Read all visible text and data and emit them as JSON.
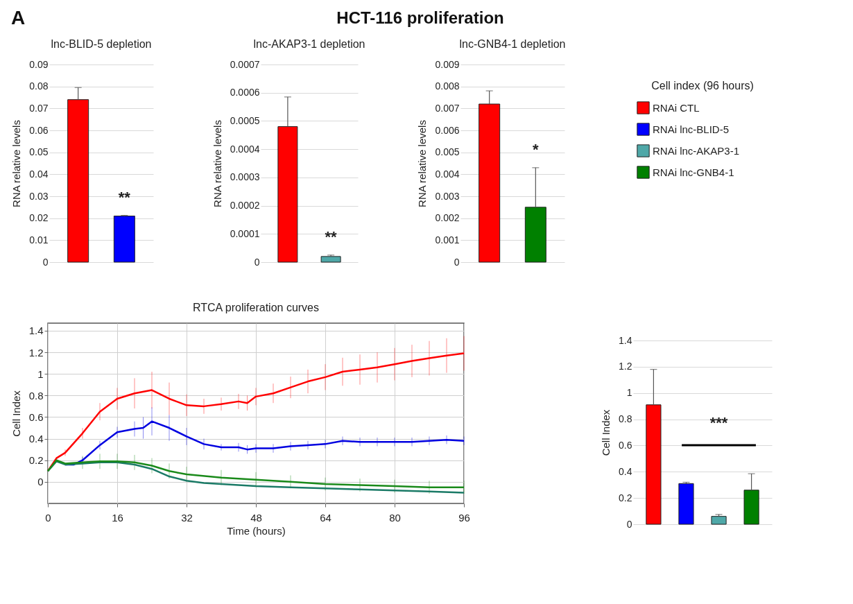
{
  "chart_data": [
    {
      "type": "other",
      "title": "HCT-116 proliferation",
      "annotations": [
        "A"
      ]
    },
    {
      "type": "bar",
      "title": "lnc-BLID-5 depletion",
      "ylabel": "RNA relative levels",
      "categories": [
        null,
        null
      ],
      "values": [
        0.074,
        0.021
      ],
      "colors": [
        "#ff0000",
        "#0000ff"
      ],
      "errors": [
        [
          0.074,
          0.0795
        ],
        [
          0.021,
          0.0213
        ]
      ],
      "ylim": [
        0,
        0.09
      ],
      "yticks": [
        0,
        0.01,
        0.02,
        0.03,
        0.04,
        0.05,
        0.06,
        0.07,
        0.08,
        0.09
      ],
      "grid": "y",
      "annotations": [
        "**"
      ]
    },
    {
      "type": "bar",
      "title": "lnc-AKAP3-1 depletion",
      "ylabel": "RNA relative levels",
      "categories": [
        null,
        null
      ],
      "values": [
        0.00048,
        2e-05
      ],
      "colors": [
        "#ff0000",
        "#4fa8a8"
      ],
      "errors": [
        [
          0.00048,
          0.000585
        ],
        [
          2e-05,
          2.5e-05
        ]
      ],
      "ylim": [
        0,
        0.0007
      ],
      "yticks": [
        0,
        0.0001,
        0.0002,
        0.0003,
        0.0004,
        0.0005,
        0.0006,
        0.0007
      ],
      "grid": "y",
      "annotations": [
        "**"
      ]
    },
    {
      "type": "bar",
      "title": "lnc-GNB4-1 depletion",
      "ylabel": "RNA relative levels",
      "categories": [
        null,
        null
      ],
      "values": [
        0.0072,
        0.0025
      ],
      "colors": [
        "#ff0000",
        "#008000"
      ],
      "errors": [
        [
          0.0072,
          0.0078
        ],
        [
          0.0025,
          0.0043
        ]
      ],
      "ylim": [
        0,
        0.009
      ],
      "yticks": [
        0,
        0.001,
        0.002,
        0.003,
        0.004,
        0.005,
        0.006,
        0.007,
        0.008,
        0.009
      ],
      "grid": "y",
      "annotations": [
        "*"
      ]
    },
    {
      "type": "line",
      "title": "RTCA proliferation curves",
      "xlabel": "Time (hours)",
      "ylabel": "Cell Index",
      "xlim": [
        0,
        96
      ],
      "xticks": [
        0,
        16,
        32,
        48,
        64,
        80,
        96
      ],
      "ylim": [
        -0.2,
        1.47
      ],
      "yticks": [
        0,
        0.2,
        0.4,
        0.6,
        0.8,
        1,
        1.2,
        1.4
      ],
      "grid": true,
      "series": [
        {
          "color": "#ff0000",
          "x": [
            0,
            2,
            4,
            8,
            12,
            16,
            20,
            24,
            28,
            32,
            36,
            40,
            44,
            46,
            48,
            52,
            56,
            60,
            64,
            68,
            72,
            76,
            80,
            84,
            88,
            92,
            96
          ],
          "values": [
            0.1,
            0.22,
            0.27,
            0.45,
            0.65,
            0.77,
            0.82,
            0.85,
            0.77,
            0.71,
            0.7,
            0.72,
            0.745,
            0.73,
            0.79,
            0.82,
            0.875,
            0.93,
            0.97,
            1.02,
            1.04,
            1.06,
            1.09,
            1.12,
            1.145,
            1.17,
            1.19
          ],
          "errors": [
            null,
            null,
            0.03,
            0.05,
            0.08,
            0.1,
            0.14,
            0.17,
            0.15,
            0.1,
            0.07,
            0.06,
            0.07,
            0.07,
            0.08,
            0.09,
            0.1,
            0.11,
            0.12,
            0.13,
            0.14,
            0.14,
            0.15,
            0.15,
            0.16,
            0.16,
            0.16
          ]
        },
        {
          "color": "#0000e0",
          "x": [
            4,
            6,
            8,
            12,
            16,
            20,
            22,
            24,
            28,
            32,
            36,
            40,
            44,
            46,
            48,
            52,
            56,
            60,
            64,
            68,
            72,
            76,
            80,
            84,
            88,
            92,
            96
          ],
          "values": [
            0.16,
            0.16,
            0.2,
            0.34,
            0.46,
            0.49,
            0.5,
            0.56,
            0.5,
            0.42,
            0.35,
            0.32,
            0.32,
            0.3,
            0.31,
            0.31,
            0.33,
            0.34,
            0.35,
            0.38,
            0.37,
            0.37,
            0.37,
            0.37,
            0.38,
            0.39,
            0.38
          ],
          "errors": [
            null,
            null,
            0.03,
            0.04,
            0.05,
            0.07,
            0.1,
            0.13,
            0.12,
            0.08,
            0.05,
            0.03,
            0.04,
            0.04,
            0.04,
            0.04,
            0.04,
            0.04,
            0.04,
            0.04,
            0.04,
            0.04,
            0.04,
            0.04,
            0.04,
            0.04,
            0.04
          ]
        },
        {
          "color": "#1a7a66",
          "x": [
            0,
            2,
            4,
            8,
            12,
            16,
            20,
            24,
            28,
            32,
            36,
            40,
            48,
            56,
            64,
            72,
            80,
            88,
            96
          ],
          "values": [
            0.1,
            0.19,
            0.16,
            0.17,
            0.18,
            0.18,
            0.16,
            0.12,
            0.05,
            0.01,
            -0.01,
            -0.02,
            -0.04,
            -0.05,
            -0.06,
            -0.07,
            -0.08,
            -0.09,
            -0.1
          ]
        },
        {
          "color": "#1a8a1a",
          "x": [
            0,
            2,
            4,
            8,
            12,
            16,
            20,
            24,
            28,
            32,
            40,
            48,
            56,
            64,
            72,
            80,
            88,
            96
          ],
          "values": [
            0.1,
            0.2,
            0.17,
            0.18,
            0.19,
            0.19,
            0.18,
            0.15,
            0.1,
            0.07,
            0.04,
            0.02,
            0.0,
            -0.02,
            -0.03,
            -0.04,
            -0.05,
            -0.05
          ],
          "errors": [
            null,
            null,
            null,
            0.06,
            0.07,
            0.07,
            0.07,
            0.07,
            0.07,
            0.07,
            0.07,
            0.07,
            0.06,
            0.06,
            0.06,
            0.06,
            0.06,
            0.06
          ]
        }
      ]
    },
    {
      "type": "bar",
      "title": "Cell index (96 hours)",
      "ylabel": "Cell Index",
      "categories": [
        null
      ],
      "ylim": [
        0,
        1.4
      ],
      "yticks": [
        0,
        0.2,
        0.4,
        0.6,
        0.8,
        1,
        1.2,
        1.4
      ],
      "grid": "y",
      "legend": "top",
      "annotations": [
        "***"
      ],
      "series": [
        {
          "name": "RNAi CTL",
          "color": "#ff0000",
          "values": [
            0.91
          ],
          "errors": [
            [
              0.91,
              1.18
            ]
          ]
        },
        {
          "name": "RNAi lnc-BLID-5",
          "color": "#0000ff",
          "values": [
            0.31
          ],
          "errors": [
            [
              0.31,
              0.32
            ]
          ]
        },
        {
          "name": "RNAi lnc-AKAP3-1",
          "color": "#4fa8a8",
          "values": [
            0.06
          ],
          "errors": [
            [
              0.06,
              0.075
            ]
          ]
        },
        {
          "name": "RNAi lnc-GNB4-1",
          "color": "#008000",
          "values": [
            0.26
          ],
          "errors": [
            [
              0.26,
              0.385
            ]
          ]
        }
      ]
    }
  ]
}
